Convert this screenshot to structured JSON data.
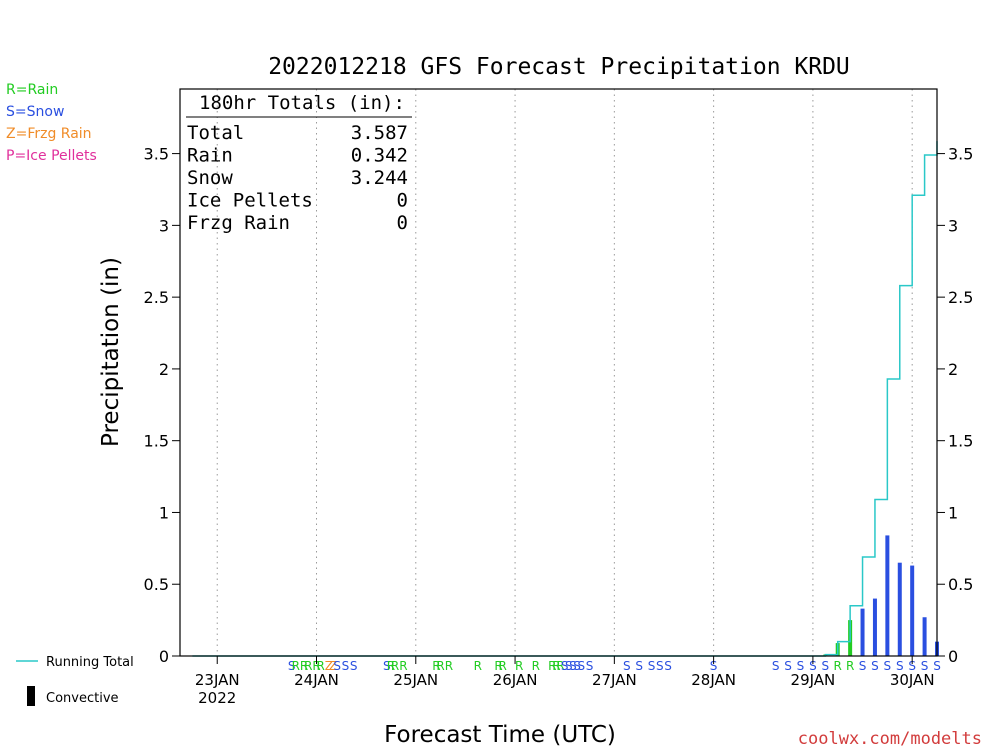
{
  "colors": {
    "rain": "#22cc22",
    "snow": "#2a4fe0",
    "frzg": "#f08c28",
    "ice": "#e0309c",
    "running": "#2ac8c8",
    "watermark": "#d23c3c",
    "axis": "#000000",
    "grid": "#9a9a9a"
  },
  "chart_data": {
    "type": "bar",
    "title": "2022012218 GFS Forecast Precipitation KRDU",
    "xlabel": "Forecast Time (UTC)",
    "ylabel": "Precipitation (in)",
    "ylim": [
      0,
      3.95
    ],
    "yticks": [
      0,
      0.5,
      1,
      1.5,
      2,
      2.5,
      3,
      3.5
    ],
    "ytick_labels": [
      "0",
      "0.5",
      "1",
      "1.5",
      "2",
      "2.5",
      "3",
      "3.5"
    ],
    "x_unit": "forecast hour",
    "xlim": [
      -3,
      180
    ],
    "x_ticks": [
      {
        "x": 6,
        "label": "23JAN",
        "sub": "2022"
      },
      {
        "x": 30,
        "label": "24JAN",
        "sub": ""
      },
      {
        "x": 54,
        "label": "25JAN",
        "sub": ""
      },
      {
        "x": 78,
        "label": "26JAN",
        "sub": ""
      },
      {
        "x": 102,
        "label": "27JAN",
        "sub": ""
      },
      {
        "x": 126,
        "label": "28JAN",
        "sub": ""
      },
      {
        "x": 150,
        "label": "29JAN",
        "sub": ""
      },
      {
        "x": 174,
        "label": "30JAN",
        "sub": ""
      }
    ],
    "grid": "vertical dotted at each 00Z",
    "legend_type": {
      "rain": "R=Rain",
      "snow": "S=Snow",
      "frzg": "Z=Frzg Rain",
      "ice": "P=Ice Pellets"
    },
    "legend_running": "Running Total",
    "legend_convective": "Convective",
    "totals": {
      "header": "180hr Totals (in):",
      "rows": [
        {
          "label": "Total",
          "value": "3.587"
        },
        {
          "label": "Rain",
          "value": "0.342"
        },
        {
          "label": "Snow",
          "value": "3.244"
        },
        {
          "label": "Ice Pellets",
          "value": "0"
        },
        {
          "label": "Frzg Rain",
          "value": "0"
        }
      ]
    },
    "series": [
      {
        "name": "Running Total",
        "kind": "step-line",
        "points": [
          [
            0,
            0
          ],
          [
            150,
            0
          ],
          [
            153,
            0.01
          ],
          [
            156,
            0.1
          ],
          [
            159,
            0.35
          ],
          [
            162,
            0.69
          ],
          [
            165,
            1.09
          ],
          [
            168,
            1.93
          ],
          [
            171,
            2.58
          ],
          [
            174,
            3.21
          ],
          [
            177,
            3.49
          ],
          [
            180,
            3.587
          ]
        ]
      }
    ],
    "bars": [
      {
        "x": 153,
        "value": 0.01,
        "type": "rain"
      },
      {
        "x": 156,
        "value": 0.09,
        "type": "rain"
      },
      {
        "x": 159,
        "value": 0.25,
        "type": "rain"
      },
      {
        "x": 162,
        "value": 0.33,
        "type": "snow"
      },
      {
        "x": 165,
        "value": 0.4,
        "type": "snow"
      },
      {
        "x": 168,
        "value": 0.84,
        "type": "snow"
      },
      {
        "x": 171,
        "value": 0.65,
        "type": "snow"
      },
      {
        "x": 174,
        "value": 0.63,
        "type": "snow"
      },
      {
        "x": 177,
        "value": 0.27,
        "type": "snow"
      },
      {
        "x": 180,
        "value": 0.1,
        "type": "snow"
      }
    ],
    "ptype_markers": [
      {
        "x": 24,
        "t": "S"
      },
      {
        "x": 25,
        "t": "R"
      },
      {
        "x": 27,
        "t": "R"
      },
      {
        "x": 28,
        "t": "R"
      },
      {
        "x": 30,
        "t": "R"
      },
      {
        "x": 31,
        "t": "R"
      },
      {
        "x": 33,
        "t": "Z"
      },
      {
        "x": 34,
        "t": "Z"
      },
      {
        "x": 35,
        "t": "S"
      },
      {
        "x": 37,
        "t": "S"
      },
      {
        "x": 39,
        "t": "S"
      },
      {
        "x": 47,
        "t": "S"
      },
      {
        "x": 48,
        "t": "R"
      },
      {
        "x": 49,
        "t": "R"
      },
      {
        "x": 51,
        "t": "R"
      },
      {
        "x": 59,
        "t": "R"
      },
      {
        "x": 60,
        "t": "R"
      },
      {
        "x": 62,
        "t": "R"
      },
      {
        "x": 69,
        "t": "R"
      },
      {
        "x": 74,
        "t": "R"
      },
      {
        "x": 75,
        "t": "R"
      },
      {
        "x": 79,
        "t": "R"
      },
      {
        "x": 83,
        "t": "R"
      },
      {
        "x": 87,
        "t": "R"
      },
      {
        "x": 88,
        "t": "R"
      },
      {
        "x": 89,
        "t": "R"
      },
      {
        "x": 90,
        "t": "S"
      },
      {
        "x": 91,
        "t": "S"
      },
      {
        "x": 92,
        "t": "S"
      },
      {
        "x": 93,
        "t": "S"
      },
      {
        "x": 94,
        "t": "S"
      },
      {
        "x": 96,
        "t": "S"
      },
      {
        "x": 105,
        "t": "S"
      },
      {
        "x": 108,
        "t": "S"
      },
      {
        "x": 111,
        "t": "S"
      },
      {
        "x": 113,
        "t": "S"
      },
      {
        "x": 115,
        "t": "S"
      },
      {
        "x": 126,
        "t": "S"
      },
      {
        "x": 141,
        "t": "S"
      },
      {
        "x": 144,
        "t": "S"
      },
      {
        "x": 147,
        "t": "S"
      },
      {
        "x": 150,
        "t": "S"
      },
      {
        "x": 153,
        "t": "S"
      },
      {
        "x": 156,
        "t": "R"
      },
      {
        "x": 159,
        "t": "R"
      },
      {
        "x": 162,
        "t": "S"
      },
      {
        "x": 165,
        "t": "S"
      },
      {
        "x": 168,
        "t": "S"
      },
      {
        "x": 171,
        "t": "S"
      },
      {
        "x": 174,
        "t": "S"
      },
      {
        "x": 177,
        "t": "S"
      },
      {
        "x": 180,
        "t": "S"
      }
    ]
  },
  "watermark": "coolwx.com/modelts"
}
